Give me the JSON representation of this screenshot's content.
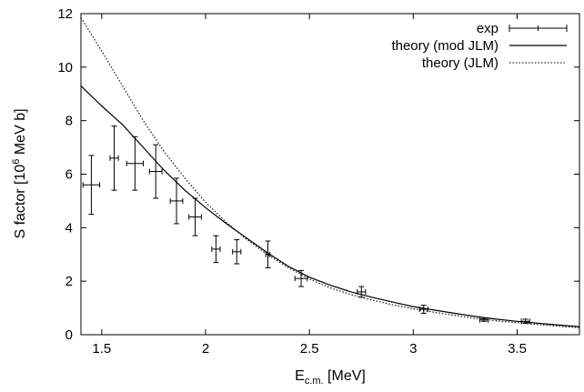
{
  "chart_data": {
    "type": "scatter",
    "title": "",
    "xlabel": {
      "main": "E",
      "sub": "c.m.",
      "rest": " [MeV]"
    },
    "ylabel": {
      "pre": "S factor [10",
      "sup": "6",
      "post": " MeV b]"
    },
    "xlim": [
      1.4,
      3.8
    ],
    "ylim": [
      0,
      12
    ],
    "x_ticks": [
      1.5,
      2,
      2.5,
      3,
      3.5
    ],
    "x_tick_labels": [
      "1.5",
      "2",
      "2.5",
      "3",
      "3.5"
    ],
    "y_ticks": [
      0,
      2,
      4,
      6,
      8,
      10,
      12
    ],
    "y_tick_labels": [
      "0",
      "2",
      "4",
      "6",
      "8",
      "10",
      "12"
    ],
    "grid": false,
    "legend_position": "top-right",
    "series": [
      {
        "name": "exp",
        "style": "points-with-errorbars",
        "points": [
          {
            "x": 1.45,
            "y": 5.6,
            "xerr": 0.04,
            "yerr": 1.1
          },
          {
            "x": 1.56,
            "y": 6.6,
            "xerr": 0.02,
            "yerr": 1.2
          },
          {
            "x": 1.66,
            "y": 6.4,
            "xerr": 0.04,
            "yerr": 1.0
          },
          {
            "x": 1.76,
            "y": 6.1,
            "xerr": 0.03,
            "yerr": 1.0
          },
          {
            "x": 1.86,
            "y": 5.0,
            "xerr": 0.03,
            "yerr": 0.85
          },
          {
            "x": 1.95,
            "y": 4.4,
            "xerr": 0.03,
            "yerr": 0.7
          },
          {
            "x": 2.05,
            "y": 3.2,
            "xerr": 0.02,
            "yerr": 0.5
          },
          {
            "x": 2.15,
            "y": 3.1,
            "xerr": 0.02,
            "yerr": 0.45
          },
          {
            "x": 2.3,
            "y": 3.0,
            "xerr": 0.01,
            "yerr": 0.5
          },
          {
            "x": 2.46,
            "y": 2.1,
            "xerr": 0.03,
            "yerr": 0.3
          },
          {
            "x": 2.75,
            "y": 1.6,
            "xerr": 0.02,
            "yerr": 0.2
          },
          {
            "x": 3.05,
            "y": 0.95,
            "xerr": 0.02,
            "yerr": 0.15
          },
          {
            "x": 3.34,
            "y": 0.55,
            "xerr": 0.02,
            "yerr": 0.05
          },
          {
            "x": 3.54,
            "y": 0.5,
            "xerr": 0.02,
            "yerr": 0.08
          }
        ]
      },
      {
        "name": "theory (mod JLM)",
        "style": "solid-line",
        "points": [
          {
            "x": 1.4,
            "y": 9.3
          },
          {
            "x": 1.5,
            "y": 8.55
          },
          {
            "x": 1.6,
            "y": 7.85
          },
          {
            "x": 1.7,
            "y": 7.0
          },
          {
            "x": 1.8,
            "y": 6.15
          },
          {
            "x": 1.9,
            "y": 5.4
          },
          {
            "x": 2.0,
            "y": 4.75
          },
          {
            "x": 2.1,
            "y": 4.15
          },
          {
            "x": 2.2,
            "y": 3.6
          },
          {
            "x": 2.3,
            "y": 3.05
          },
          {
            "x": 2.4,
            "y": 2.55
          },
          {
            "x": 2.5,
            "y": 2.15
          },
          {
            "x": 2.6,
            "y": 1.85
          },
          {
            "x": 2.7,
            "y": 1.6
          },
          {
            "x": 2.8,
            "y": 1.4
          },
          {
            "x": 2.9,
            "y": 1.22
          },
          {
            "x": 3.0,
            "y": 1.05
          },
          {
            "x": 3.1,
            "y": 0.92
          },
          {
            "x": 3.2,
            "y": 0.8
          },
          {
            "x": 3.3,
            "y": 0.68
          },
          {
            "x": 3.4,
            "y": 0.58
          },
          {
            "x": 3.5,
            "y": 0.5
          },
          {
            "x": 3.6,
            "y": 0.43
          },
          {
            "x": 3.7,
            "y": 0.36
          },
          {
            "x": 3.8,
            "y": 0.3
          }
        ]
      },
      {
        "name": "theory (JLM)",
        "style": "dotted-line",
        "points": [
          {
            "x": 1.4,
            "y": 11.85
          },
          {
            "x": 1.5,
            "y": 10.6
          },
          {
            "x": 1.6,
            "y": 9.3
          },
          {
            "x": 1.7,
            "y": 8.0
          },
          {
            "x": 1.8,
            "y": 6.85
          },
          {
            "x": 1.9,
            "y": 5.85
          },
          {
            "x": 2.0,
            "y": 4.95
          },
          {
            "x": 2.1,
            "y": 4.2
          },
          {
            "x": 2.2,
            "y": 3.55
          },
          {
            "x": 2.3,
            "y": 2.98
          },
          {
            "x": 2.4,
            "y": 2.5
          },
          {
            "x": 2.5,
            "y": 2.08
          },
          {
            "x": 2.6,
            "y": 1.75
          },
          {
            "x": 2.7,
            "y": 1.5
          },
          {
            "x": 2.8,
            "y": 1.3
          },
          {
            "x": 2.9,
            "y": 1.12
          },
          {
            "x": 3.0,
            "y": 0.97
          },
          {
            "x": 3.1,
            "y": 0.84
          },
          {
            "x": 3.2,
            "y": 0.72
          },
          {
            "x": 3.3,
            "y": 0.61
          },
          {
            "x": 3.4,
            "y": 0.52
          },
          {
            "x": 3.5,
            "y": 0.45
          },
          {
            "x": 3.6,
            "y": 0.38
          },
          {
            "x": 3.7,
            "y": 0.32
          },
          {
            "x": 3.8,
            "y": 0.26
          }
        ]
      }
    ]
  }
}
